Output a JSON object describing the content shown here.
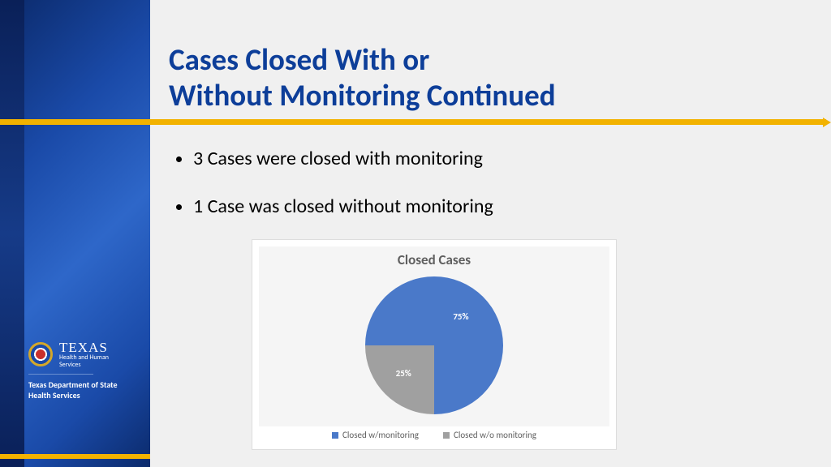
{
  "colors": {
    "title": "#0d3e99",
    "accent": "#f2b200",
    "sidebar_grad": [
      "#0b2a6b",
      "#1a4aa8",
      "#2e67c9"
    ],
    "background": "#f0f0f0",
    "chart_bg": "#f5f5f5",
    "text": "#000000",
    "chart_text": "#5f5f5f"
  },
  "logo": {
    "line1": "TEXAS",
    "line2": "Health and Human\nServices",
    "line3": "Texas Department of State\nHealth Services"
  },
  "title": {
    "line1": "Cases Closed With or",
    "line2": "Without Monitoring Continued",
    "fontsize": 37,
    "fontweight": "bold"
  },
  "bullets": [
    "3 Cases were closed with monitoring",
    "1 Case was closed without monitoring"
  ],
  "chart": {
    "type": "pie",
    "title": "Closed Cases",
    "title_fontsize": 17,
    "slices": [
      {
        "label": "Closed w/monitoring",
        "value": 75,
        "display": "75%",
        "color": "#4a79c9"
      },
      {
        "label": "Closed w/o monitoring",
        "value": 25,
        "display": "25%",
        "color": "#a0a0a0"
      }
    ],
    "start_angle_deg": 270,
    "label_fontsize": 11,
    "label_color": "#ffffff",
    "legend_fontsize": 11,
    "background_color": "#f5f5f5",
    "card_border": "#dddddd"
  }
}
